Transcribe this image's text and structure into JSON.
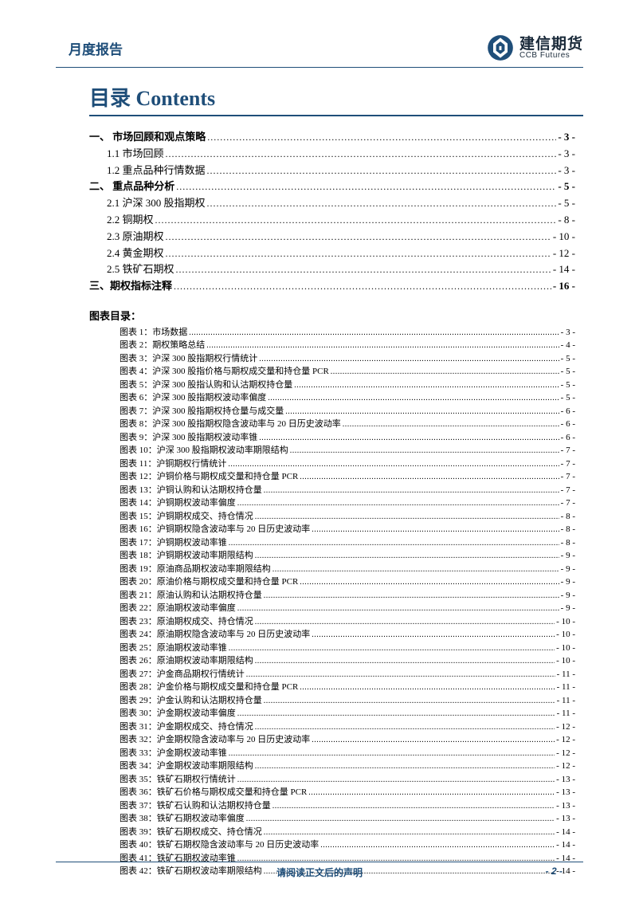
{
  "header": {
    "title": "月度报告",
    "logo_cn": "建信期货",
    "logo_en": "CCB Futures"
  },
  "colors": {
    "primary": "#1f4e79",
    "text": "#000000",
    "background": "#ffffff"
  },
  "contents_title": "目录 Contents",
  "toc": [
    {
      "label": "一、 市场回顾和观点策略 ",
      "page": "- 3 -",
      "bold": true,
      "sub": false
    },
    {
      "label": "1.1 市场回顾 ",
      "page": "- 3 -",
      "bold": false,
      "sub": true
    },
    {
      "label": "1.2 重点品种行情数据 ",
      "page": "- 3 -",
      "bold": false,
      "sub": true
    },
    {
      "label": "二、 重点品种分析 ",
      "page": "- 5 -",
      "bold": true,
      "sub": false
    },
    {
      "label": "2.1 沪深 300 股指期权",
      "page": "- 5 -",
      "bold": false,
      "sub": true
    },
    {
      "label": "2.2 铜期权",
      "page": "- 8 -",
      "bold": false,
      "sub": true
    },
    {
      "label": "2.3 原油期权",
      "page": "- 10 -",
      "bold": false,
      "sub": true
    },
    {
      "label": "2.4 黄金期权",
      "page": "- 12 -",
      "bold": false,
      "sub": true
    },
    {
      "label": "2.5 铁矿石期权",
      "page": "- 14 -",
      "bold": false,
      "sub": true
    },
    {
      "label": "三、期权指标注释",
      "page": "- 16 -",
      "bold": true,
      "sub": false
    }
  ],
  "figlist_title": "图表目录：",
  "figures": [
    {
      "label": "图表 1：市场数据",
      "page": "- 3 -"
    },
    {
      "label": "图表 2：期权策略总结",
      "page": "- 4 -"
    },
    {
      "label": "图表 3：沪深 300 股指期权行情统计",
      "page": "- 5 -"
    },
    {
      "label": "图表 4：沪深 300 股指价格与期权成交量和持仓量 PCR",
      "page": "- 5 -"
    },
    {
      "label": "图表 5：沪深 300 股指认购和认沽期权持仓量",
      "page": "- 5 -"
    },
    {
      "label": "图表 6：沪深 300 股指期权波动率偏度",
      "page": "- 5 -"
    },
    {
      "label": "图表 7：沪深 300 股指期权持仓量与成交量",
      "page": "- 6 -"
    },
    {
      "label": "图表 8：沪深 300 股指期权隐含波动率与 20 日历史波动率",
      "page": "- 6 -"
    },
    {
      "label": "图表 9：沪深 300 股指期权波动率锥",
      "page": "- 6 -"
    },
    {
      "label": "图表 10：沪深 300 股指期权波动率期限结构",
      "page": "- 7 -"
    },
    {
      "label": "图表 11：沪铜期权行情统计",
      "page": "- 7 -"
    },
    {
      "label": "图表 12：沪铜价格与期权成交量和持仓量 PCR",
      "page": "- 7 -"
    },
    {
      "label": "图表 13：沪铜认购和认沽期权持仓量",
      "page": "- 7 -"
    },
    {
      "label": "图表 14：沪铜期权波动率偏度",
      "page": "- 7 -"
    },
    {
      "label": "图表 15：沪铜期权成交、持仓情况",
      "page": "- 8 -"
    },
    {
      "label": "图表 16：沪铜期权隐含波动率与 20 日历史波动率",
      "page": "- 8 -"
    },
    {
      "label": "图表 17：沪铜期权波动率锥",
      "page": "- 8 -"
    },
    {
      "label": "图表 18：沪铜期权波动率期限结构",
      "page": "- 9 -"
    },
    {
      "label": "图表 19：原油商品期权波动率期限结构",
      "page": "- 9 -"
    },
    {
      "label": "图表 20：原油价格与期权成交量和持仓量 PCR",
      "page": "- 9 -"
    },
    {
      "label": "图表 21：原油认购和认沽期权持仓量",
      "page": "- 9 -"
    },
    {
      "label": "图表 22：原油期权波动率偏度",
      "page": "- 9 -"
    },
    {
      "label": "图表 23：原油期权成交、持仓情况",
      "page": "- 10 -"
    },
    {
      "label": "图表 24：原油期权隐含波动率与 20 日历史波动率",
      "page": "- 10 -"
    },
    {
      "label": "图表 25：原油期权波动率锥",
      "page": "- 10 -"
    },
    {
      "label": "图表 26：原油期权波动率期限结构",
      "page": "- 10 -"
    },
    {
      "label": "图表 27：沪金商品期权行情统计",
      "page": "- 11 -"
    },
    {
      "label": "图表 28：沪金价格与期权成交量和持仓量 PCR",
      "page": "- 11 -"
    },
    {
      "label": "图表 29：沪金认购和认沽期权持仓量",
      "page": "- 11 -"
    },
    {
      "label": "图表 30：沪金期权波动率偏度",
      "page": "- 11 -"
    },
    {
      "label": "图表 31：沪金期权成交、持仓情况",
      "page": "- 12 -"
    },
    {
      "label": "图表 32：沪金期权隐含波动率与 20 日历史波动率",
      "page": "- 12 -"
    },
    {
      "label": "图表 33：沪金期权波动率锥",
      "page": "- 12 -"
    },
    {
      "label": "图表 34：沪金期权波动率期限结构",
      "page": "- 12 -"
    },
    {
      "label": "图表 35：铁矿石期权行情统计",
      "page": "- 13 -"
    },
    {
      "label": "图表 36：铁矿石价格与期权成交量和持仓量 PCR",
      "page": "- 13 -"
    },
    {
      "label": "图表 37：铁矿石认购和认沽期权持仓量",
      "page": "- 13 -"
    },
    {
      "label": "图表 38：铁矿石期权波动率偏度",
      "page": "- 13 -"
    },
    {
      "label": "图表 39：铁矿石期权成交、持仓情况",
      "page": "- 14 -"
    },
    {
      "label": "图表 40：铁矿石期权隐含波动率与 20 日历史波动率",
      "page": "- 14 -"
    },
    {
      "label": "图表 41：铁矿石期权波动率锥",
      "page": "- 14 -"
    },
    {
      "label": "图表 42：铁矿石期权波动率期限结构",
      "page": "- 14 -"
    }
  ],
  "footer": {
    "note": "请阅读正文后的声明",
    "page": "- 2 -"
  }
}
